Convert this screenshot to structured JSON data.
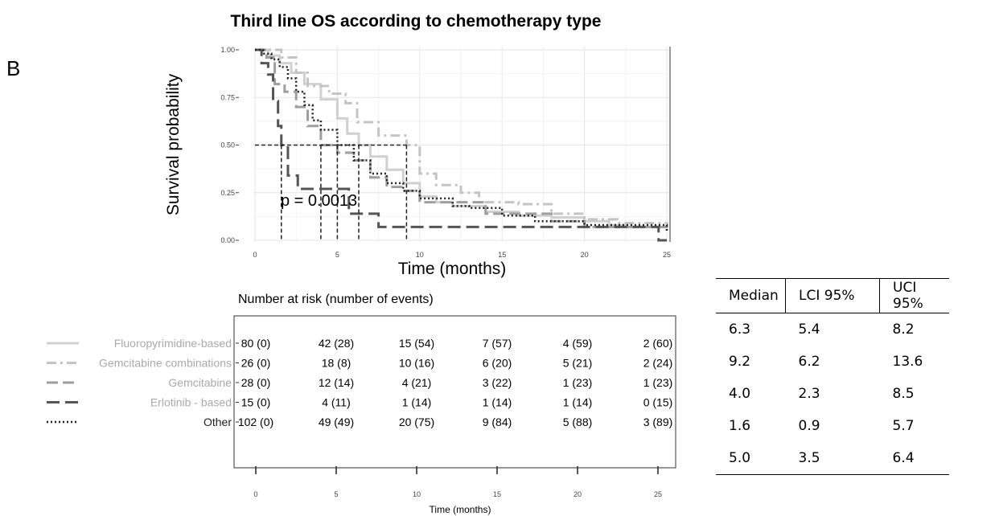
{
  "panel_label": "B",
  "chart_data": {
    "type": "line",
    "subtype": "kaplan-meier",
    "title": "Third line OS according to chemotherapy type",
    "xlabel": "Time (months)",
    "ylabel": "Survival probability",
    "xlim": [
      0,
      25
    ],
    "ylim": [
      0,
      1
    ],
    "x_ticks": [
      0,
      5,
      10,
      15,
      20,
      25
    ],
    "y_ticks": [
      "0.00",
      "0.25",
      "0.50",
      "0.75",
      "1.00"
    ],
    "grid": true,
    "annotation": "p = 0.0013",
    "median_reference_y": 0.5,
    "series": [
      {
        "name": "Fluoropyrimidine-based",
        "color": "#d0d0d0",
        "style": "solid",
        "points": [
          [
            0,
            1
          ],
          [
            0.8,
            0.97
          ],
          [
            1.5,
            0.93
          ],
          [
            2.2,
            0.88
          ],
          [
            3,
            0.82
          ],
          [
            4,
            0.74
          ],
          [
            5,
            0.64
          ],
          [
            5.6,
            0.56
          ],
          [
            6.3,
            0.5
          ],
          [
            7,
            0.44
          ],
          [
            8,
            0.37
          ],
          [
            9,
            0.3
          ],
          [
            10,
            0.23
          ],
          [
            11,
            0.2
          ],
          [
            12,
            0.18
          ],
          [
            14,
            0.15
          ],
          [
            16,
            0.13
          ],
          [
            18,
            0.12
          ],
          [
            20,
            0.1
          ],
          [
            21.5,
            0.08
          ],
          [
            22.5,
            0.07
          ],
          [
            25,
            0.07
          ]
        ]
      },
      {
        "name": "Gemcitabine combinations",
        "color": "#c4c4c4",
        "style": "dash-dot",
        "points": [
          [
            0,
            1
          ],
          [
            1.2,
            1
          ],
          [
            1.6,
            0.96
          ],
          [
            2.5,
            0.88
          ],
          [
            3.2,
            0.81
          ],
          [
            4.5,
            0.77
          ],
          [
            5.5,
            0.72
          ],
          [
            6.2,
            0.62
          ],
          [
            7.5,
            0.55
          ],
          [
            9.2,
            0.5
          ],
          [
            10,
            0.35
          ],
          [
            11,
            0.29
          ],
          [
            12.5,
            0.25
          ],
          [
            13.6,
            0.2
          ],
          [
            16,
            0.19
          ],
          [
            18,
            0.14
          ],
          [
            20,
            0.11
          ],
          [
            22,
            0.09
          ],
          [
            25,
            0.08
          ]
        ]
      },
      {
        "name": "Gemcitabine",
        "color": "#9e9e9e",
        "style": "dash",
        "points": [
          [
            0,
            1
          ],
          [
            0.7,
            0.96
          ],
          [
            1.2,
            0.82
          ],
          [
            1.8,
            0.78
          ],
          [
            2.5,
            0.7
          ],
          [
            3.2,
            0.6
          ],
          [
            4,
            0.5
          ],
          [
            5,
            0.46
          ],
          [
            6,
            0.42
          ],
          [
            7,
            0.33
          ],
          [
            8,
            0.28
          ],
          [
            9,
            0.26
          ],
          [
            10,
            0.2
          ],
          [
            14,
            0.14
          ],
          [
            18,
            0.1
          ],
          [
            20,
            0.07
          ],
          [
            25,
            0.05
          ]
        ]
      },
      {
        "name": "Erlotinib - based",
        "color": "#555555",
        "style": "long-dash",
        "points": [
          [
            0,
            1
          ],
          [
            0.4,
            0.93
          ],
          [
            0.8,
            0.87
          ],
          [
            1.1,
            0.73
          ],
          [
            1.4,
            0.6
          ],
          [
            1.6,
            0.5
          ],
          [
            2,
            0.34
          ],
          [
            2.6,
            0.27
          ],
          [
            5.7,
            0.14
          ],
          [
            7.5,
            0.07
          ],
          [
            24.5,
            0.07
          ],
          [
            24.5,
            0
          ],
          [
            25,
            0
          ]
        ]
      },
      {
        "name": "Other",
        "color": "#222222",
        "style": "dotted",
        "points": [
          [
            0,
            1
          ],
          [
            0.5,
            0.98
          ],
          [
            1,
            0.95
          ],
          [
            1.5,
            0.91
          ],
          [
            2,
            0.85
          ],
          [
            2.5,
            0.78
          ],
          [
            3,
            0.71
          ],
          [
            3.5,
            0.63
          ],
          [
            4,
            0.58
          ],
          [
            5,
            0.5
          ],
          [
            6,
            0.42
          ],
          [
            7,
            0.35
          ],
          [
            8,
            0.3
          ],
          [
            9,
            0.26
          ],
          [
            10,
            0.22
          ],
          [
            12,
            0.18
          ],
          [
            13,
            0.17
          ],
          [
            15,
            0.13
          ],
          [
            17,
            0.1
          ],
          [
            20,
            0.08
          ],
          [
            25,
            0.05
          ]
        ]
      }
    ],
    "medians": [
      1.6,
      4.0,
      5.0,
      6.3,
      9.2
    ],
    "risk_table": {
      "title": "Number at risk (number of events)",
      "xlabel": "Time (months)",
      "times": [
        "0",
        "5",
        "10",
        "15",
        "20",
        "25"
      ],
      "rows": [
        {
          "label": "Fluoropyrimidine-based",
          "values": [
            "80 (0)",
            "42 (28)",
            "15 (54)",
            "7 (57)",
            "4 (59)",
            "2 (60)"
          ]
        },
        {
          "label": "Gemcitabine combinations",
          "values": [
            "26 (0)",
            "18 (8)",
            "10 (16)",
            "6 (20)",
            "5 (21)",
            "2 (24)"
          ]
        },
        {
          "label": "Gemcitabine",
          "values": [
            "28 (0)",
            "12 (14)",
            "4 (21)",
            "3 (22)",
            "1 (23)",
            "1 (23)"
          ]
        },
        {
          "label": "Erlotinib - based",
          "values": [
            "15 (0)",
            "4 (11)",
            "1 (14)",
            "1 (14)",
            "1 (14)",
            "0 (15)"
          ]
        },
        {
          "label": "Other",
          "values": [
            "102 (0)",
            "49 (49)",
            "20 (75)",
            "9 (84)",
            "5 (88)",
            "3 (89)"
          ]
        }
      ]
    }
  },
  "stats_table": {
    "headers": [
      "Median",
      "LCI 95%",
      "UCI 95%"
    ],
    "rows": [
      [
        "6.3",
        "5.4",
        "8.2"
      ],
      [
        "9.2",
        "6.2",
        "13.6"
      ],
      [
        "4.0",
        "2.3",
        "8.5"
      ],
      [
        "1.6",
        "0.9",
        "5.7"
      ],
      [
        "5.0",
        "3.5",
        "6.4"
      ]
    ]
  }
}
